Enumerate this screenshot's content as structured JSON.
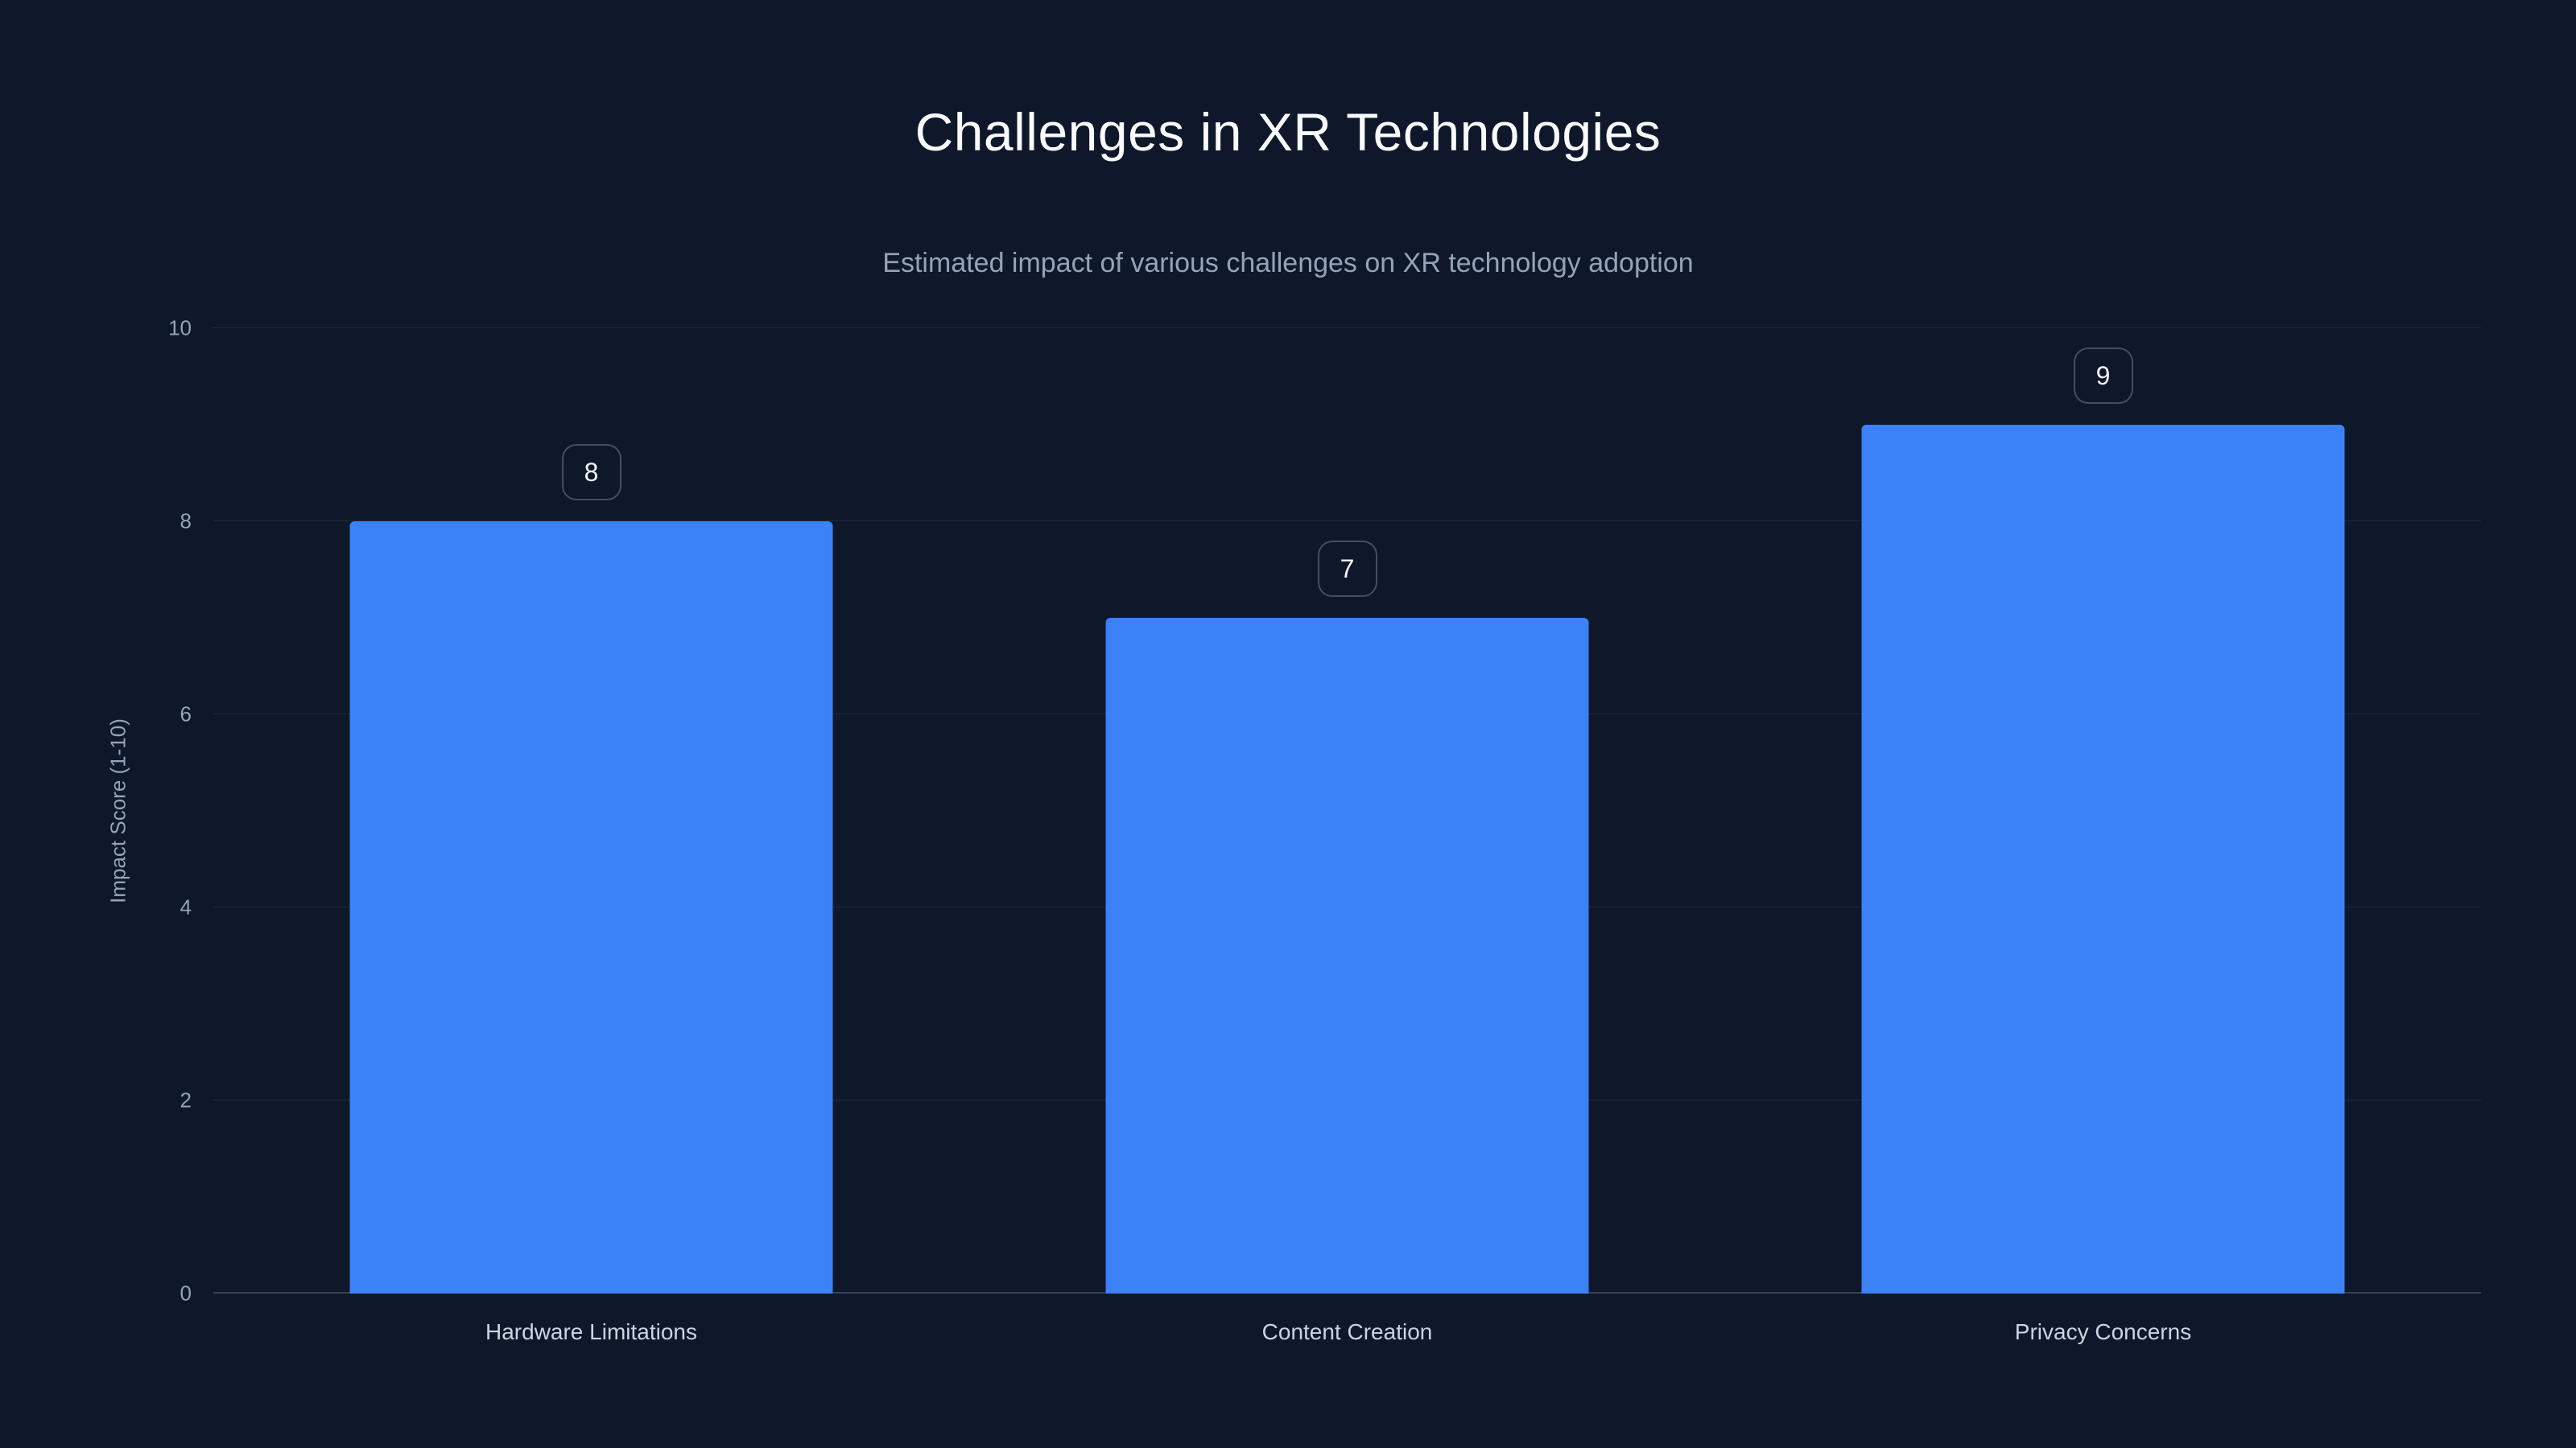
{
  "page": {
    "background_color": "#0f172a"
  },
  "chart_data": {
    "type": "bar",
    "title": "Challenges in XR Technologies",
    "subtitle": "Estimated impact of various challenges on XR technology adoption",
    "categories": [
      "Hardware Limitations",
      "Content Creation",
      "Privacy Concerns"
    ],
    "values": [
      8,
      7,
      9
    ],
    "xlabel": "",
    "ylabel": "Impact Score (1-10)",
    "ylim": [
      0,
      10
    ],
    "yticks": [
      0,
      2,
      4,
      6,
      8,
      10
    ],
    "grid": true,
    "legend_position": "none",
    "bar_color": "#3b82f6",
    "value_labels": [
      8,
      7,
      9
    ]
  }
}
